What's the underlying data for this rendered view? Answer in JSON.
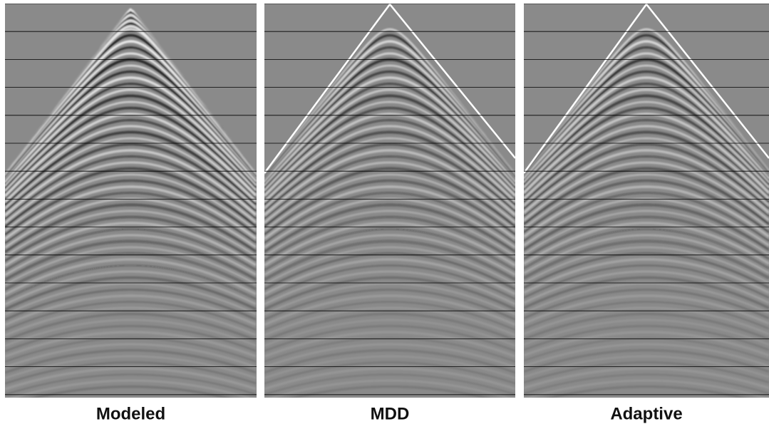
{
  "panels": [
    {
      "label": "Modeled"
    },
    {
      "label": "MDD"
    },
    {
      "label": "Adaptive"
    }
  ]
}
